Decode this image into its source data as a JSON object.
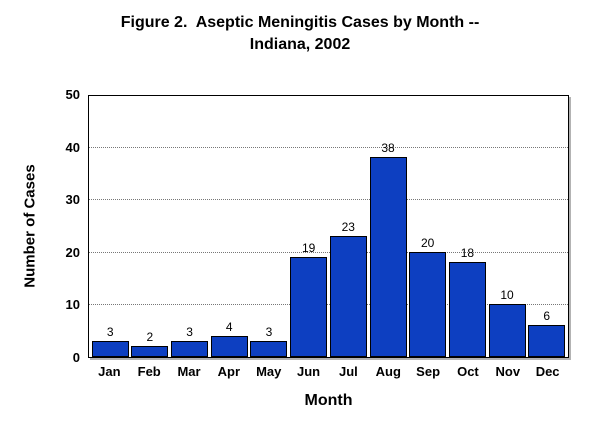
{
  "chart_data": {
    "type": "bar",
    "title": "Figure 2.  Aseptic Meningitis Cases by Month --\nIndiana, 2002",
    "xlabel": "Month",
    "ylabel": "Number of Cases",
    "categories": [
      "Jan",
      "Feb",
      "Mar",
      "Apr",
      "May",
      "Jun",
      "Jul",
      "Aug",
      "Sep",
      "Oct",
      "Nov",
      "Dec"
    ],
    "values": [
      3,
      2,
      3,
      4,
      3,
      19,
      23,
      38,
      20,
      18,
      10,
      6
    ],
    "ylim": [
      0,
      50
    ],
    "yticks": [
      0,
      10,
      20,
      30,
      40,
      50
    ],
    "grid": "horizontal dotted gridlines at 10, 20, 30, 40",
    "legend": "none",
    "data_labels": "value shown above each bar",
    "bar_color": "#0d3fc1",
    "bar_border_color": "#000000",
    "gridline_color": "#777777",
    "plot_border_color": "#000000",
    "background_color": "#ffffff",
    "text_color": "#000000"
  }
}
